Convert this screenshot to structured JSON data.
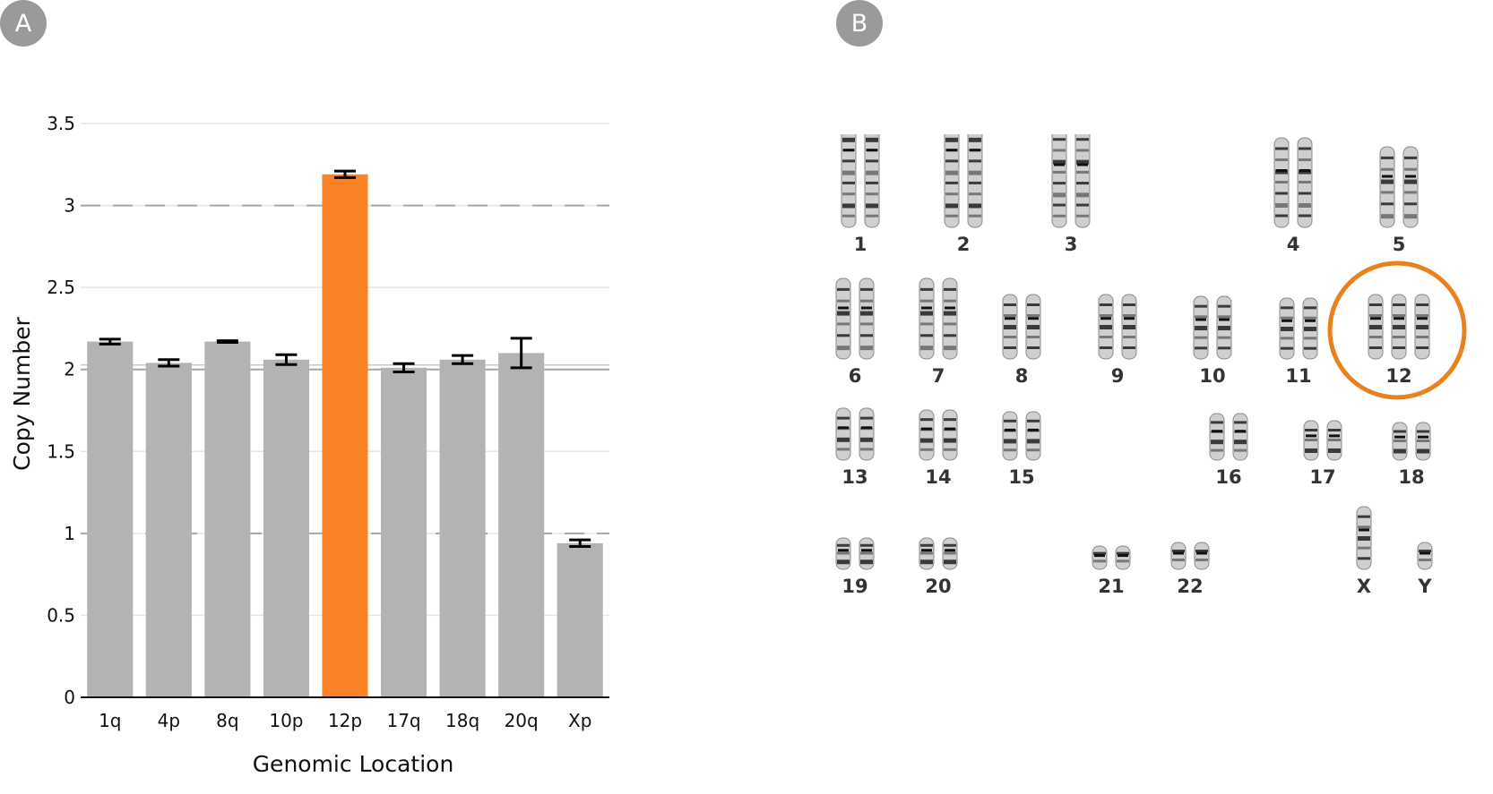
{
  "panels": {
    "a_label": "A",
    "b_label": "B"
  },
  "colors": {
    "bar": "#b3b3b3",
    "highlight_bar": "#fb8226",
    "circle": "#e8811e",
    "grid": "#e6e6e6",
    "ref_line": "#a6a6a6"
  },
  "chart_data": {
    "type": "bar",
    "title": "",
    "xlabel": "Genomic Location",
    "ylabel": "Copy Number",
    "categories": [
      "1q",
      "4p",
      "8q",
      "10p",
      "12p",
      "17q",
      "18q",
      "20q",
      "Xp"
    ],
    "values": [
      2.17,
      2.04,
      2.17,
      2.06,
      3.19,
      2.01,
      2.06,
      2.1,
      0.94
    ],
    "error": [
      0.015,
      0.02,
      0.005,
      0.03,
      0.02,
      0.025,
      0.025,
      0.09,
      0.02
    ],
    "highlight": "12p",
    "ylim": [
      0,
      3.5
    ],
    "yticks": [
      "0",
      "0.5",
      "1",
      "1.5",
      "2",
      "2.5",
      "3",
      "3.5"
    ],
    "reference_lines": [
      1,
      2,
      3
    ],
    "grid": true
  },
  "karyotype": {
    "highlighted": "12",
    "chromosomes": [
      "1",
      "2",
      "3",
      "4",
      "5",
      "6",
      "7",
      "8",
      "9",
      "10",
      "11",
      "12",
      "13",
      "14",
      "15",
      "16",
      "17",
      "18",
      "19",
      "20",
      "21",
      "22",
      "X",
      "Y"
    ]
  }
}
